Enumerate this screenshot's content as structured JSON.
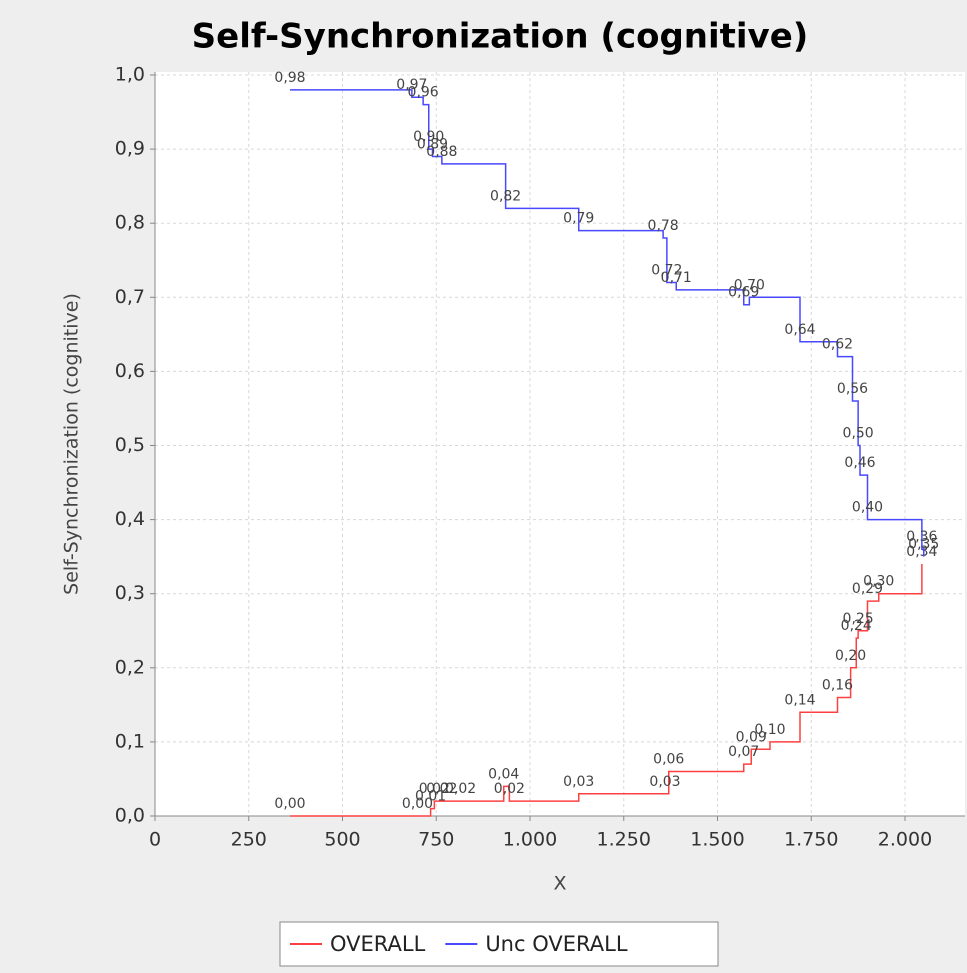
{
  "chart_data": {
    "type": "step",
    "title": "Self-Synchronization (cognitive)",
    "x_label": "X",
    "y_label": "Self-Synchronization (cognitive)",
    "xlim": [
      0,
      2160
    ],
    "ylim": [
      0,
      1
    ],
    "xticks": [
      0,
      250,
      500,
      750,
      {
        "value": 1000,
        "label": "1.000"
      },
      {
        "value": 1250,
        "label": "1.250"
      },
      {
        "value": 1500,
        "label": "1.500"
      },
      {
        "value": 1750,
        "label": "1.750"
      },
      {
        "value": 2000,
        "label": "2.000"
      }
    ],
    "yticks": [
      {
        "value": 0,
        "label": "0,0"
      },
      {
        "value": 0.1,
        "label": "0,1"
      },
      {
        "value": 0.2,
        "label": "0,2"
      },
      {
        "value": 0.3,
        "label": "0,3"
      },
      {
        "value": 0.4,
        "label": "0,4"
      },
      {
        "value": 0.5,
        "label": "0,5"
      },
      {
        "value": 0.6,
        "label": "0,6"
      },
      {
        "value": 0.7,
        "label": "0,7"
      },
      {
        "value": 0.8,
        "label": "0,8"
      },
      {
        "value": 0.9,
        "label": "0,9"
      },
      {
        "value": 1,
        "label": "1,0"
      }
    ],
    "grid": true,
    "legend": "bottom",
    "series": [
      {
        "name": "OVERALL",
        "color": "#ff4040",
        "x": [
          360,
          700,
          735,
          745,
          765,
          815,
          930,
          945,
          1130,
          1360,
          1370,
          1570,
          1590,
          1640,
          1720,
          1820,
          1855,
          1870,
          1875,
          1900,
          1930,
          2045
        ],
        "values": [
          0,
          0,
          0.01,
          0.02,
          0.02,
          0.02,
          0.04,
          0.02,
          0.03,
          0.03,
          0.06,
          0.07,
          0.09,
          0.1,
          0.14,
          0.16,
          0.2,
          0.24,
          0.25,
          0.29,
          0.3,
          0.34
        ],
        "value_labels": [
          "0,00",
          "0,00",
          "0,01",
          "0,02",
          "0,02",
          "0,02",
          "0,04",
          "0,02",
          "0,03",
          "0,03",
          "0,06",
          "0,07",
          "0,09",
          "0,10",
          "0,14",
          "0,16",
          "0,20",
          "0,24",
          "0,25",
          "0,29",
          "0,30",
          "0,34"
        ]
      },
      {
        "name": "Unc OVERALL",
        "color": "#4848ff",
        "x": [
          360,
          685,
          715,
          730,
          740,
          765,
          935,
          1130,
          1355,
          1365,
          1390,
          1570,
          1585,
          1720,
          1820,
          1860,
          1875,
          1880,
          1900,
          2045,
          2050
        ],
        "values": [
          0.98,
          0.97,
          0.96,
          0.9,
          0.89,
          0.88,
          0.82,
          0.79,
          0.78,
          0.72,
          0.71,
          0.69,
          0.7,
          0.64,
          0.62,
          0.56,
          0.5,
          0.46,
          0.4,
          0.36,
          0.35
        ],
        "value_labels": [
          "0,98",
          "0,97",
          "0,96",
          "0,90",
          "0,89",
          "0,88",
          "0,82",
          "0,79",
          "0,78",
          "0,72",
          "0,71",
          "0,69",
          "0,70",
          "0,64",
          "0,62",
          "0,56",
          "0,50",
          "0,46",
          "0,40",
          "0,36",
          "0,35"
        ]
      }
    ]
  }
}
